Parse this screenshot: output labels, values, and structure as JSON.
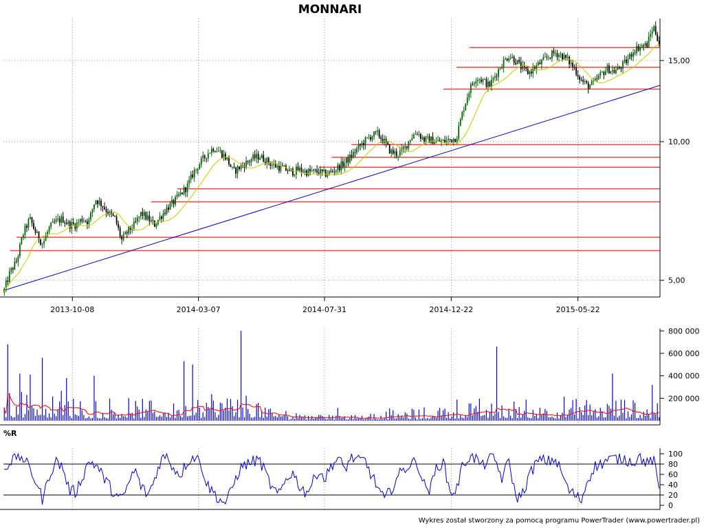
{
  "chart_data": [
    {
      "panel": "price",
      "type": "candlestick",
      "title": "MONNARI",
      "y_scale": "log",
      "ylim": [
        4.6,
        18.5
      ],
      "y_ticks": [
        5,
        10,
        15
      ],
      "y_tick_labels": [
        "5,00",
        "10,00",
        "15,00"
      ],
      "x_tick_labels": [
        "2013-10-08",
        "2014-03-07",
        "2014-07-31",
        "2014-12-22",
        "2015-05-22"
      ],
      "x_range_index": [
        0,
        100
      ],
      "x_tick_positions_index": [
        10.5,
        29.7,
        48.9,
        68.2,
        87.5
      ],
      "grid": true,
      "price_path": [
        [
          0,
          4.7
        ],
        [
          1,
          5.2
        ],
        [
          2,
          5.5
        ],
        [
          3,
          6.3
        ],
        [
          4,
          6.8
        ],
        [
          5,
          6.3
        ],
        [
          6,
          6.0
        ],
        [
          7,
          6.5
        ],
        [
          8,
          6.7
        ],
        [
          9,
          6.8
        ],
        [
          10,
          6.6
        ],
        [
          11,
          6.6
        ],
        [
          12,
          6.8
        ],
        [
          13,
          6.7
        ],
        [
          14,
          7.5
        ],
        [
          15,
          7.3
        ],
        [
          16,
          7.0
        ],
        [
          17,
          6.8
        ],
        [
          18,
          6.1
        ],
        [
          19,
          6.4
        ],
        [
          20,
          6.6
        ],
        [
          21,
          7.0
        ],
        [
          22,
          6.8
        ],
        [
          23,
          6.6
        ],
        [
          24,
          6.9
        ],
        [
          25,
          7.2
        ],
        [
          26,
          7.4
        ],
        [
          27,
          7.7
        ],
        [
          28,
          8.0
        ],
        [
          29,
          8.6
        ],
        [
          30,
          9.0
        ],
        [
          31,
          9.4
        ],
        [
          32,
          9.7
        ],
        [
          33,
          9.5
        ],
        [
          34,
          9.2
        ],
        [
          35,
          8.6
        ],
        [
          36,
          8.8
        ],
        [
          37,
          9.0
        ],
        [
          38,
          9.2
        ],
        [
          39,
          9.3
        ],
        [
          40,
          9.1
        ],
        [
          41,
          8.9
        ],
        [
          42,
          8.8
        ],
        [
          43,
          8.7
        ],
        [
          44,
          8.6
        ],
        [
          45,
          8.7
        ],
        [
          46,
          8.6
        ],
        [
          47,
          8.6
        ],
        [
          48,
          8.6
        ],
        [
          49,
          8.5
        ],
        [
          50,
          8.6
        ],
        [
          51,
          8.8
        ],
        [
          52,
          9.0
        ],
        [
          53,
          9.3
        ],
        [
          54,
          9.7
        ],
        [
          55,
          10.0
        ],
        [
          56,
          10.3
        ],
        [
          57,
          10.4
        ],
        [
          58,
          10.0
        ],
        [
          59,
          9.5
        ],
        [
          60,
          9.4
        ],
        [
          61,
          9.6
        ],
        [
          62,
          10.2
        ],
        [
          63,
          10.5
        ],
        [
          64,
          10.1
        ],
        [
          65,
          10.1
        ],
        [
          66,
          10.0
        ],
        [
          67,
          10.0
        ],
        [
          68,
          10.1
        ],
        [
          69,
          10.2
        ],
        [
          70,
          11.7
        ],
        [
          71,
          13.0
        ],
        [
          72,
          13.8
        ],
        [
          73,
          13.6
        ],
        [
          74,
          13.2
        ],
        [
          75,
          14.0
        ],
        [
          76,
          14.8
        ],
        [
          77,
          15.4
        ],
        [
          78,
          15.0
        ],
        [
          79,
          14.4
        ],
        [
          80,
          14.1
        ],
        [
          81,
          14.5
        ],
        [
          82,
          14.9
        ],
        [
          83,
          15.3
        ],
        [
          84,
          15.6
        ],
        [
          85,
          15.4
        ],
        [
          86,
          15.0
        ],
        [
          87,
          14.4
        ],
        [
          88,
          13.6
        ],
        [
          89,
          13.2
        ],
        [
          90,
          13.4
        ],
        [
          91,
          14.0
        ],
        [
          92,
          14.4
        ],
        [
          93,
          14.2
        ],
        [
          94,
          14.5
        ],
        [
          95,
          15.0
        ],
        [
          96,
          15.8
        ],
        [
          97,
          16.1
        ],
        [
          98,
          16.2
        ],
        [
          99,
          17.8
        ],
        [
          100,
          16.2
        ]
      ],
      "moving_average_color": "#c8c800",
      "support_levels": [
        {
          "x_from": 1,
          "x_to": 100,
          "value": 5.8
        },
        {
          "x_from": 2,
          "x_to": 100,
          "value": 6.2
        },
        {
          "x_from": 22.5,
          "x_to": 100,
          "value": 7.4
        },
        {
          "x_from": 26.5,
          "x_to": 100,
          "value": 7.9
        },
        {
          "x_from": 48,
          "x_to": 100,
          "value": 8.8
        },
        {
          "x_from": 50,
          "x_to": 100,
          "value": 9.25
        },
        {
          "x_from": 53,
          "x_to": 100,
          "value": 9.85
        },
        {
          "x_from": 67,
          "x_to": 100,
          "value": 13.0
        },
        {
          "x_from": 69,
          "x_to": 100,
          "value": 14.5
        },
        {
          "x_from": 71,
          "x_to": 100,
          "value": 16.0
        }
      ],
      "support_color": "#ff4040",
      "trendline": {
        "x1": 0,
        "y1": 4.75,
        "x2": 100,
        "y2": 13.25,
        "color": "#0000cc"
      }
    },
    {
      "panel": "volume",
      "type": "bar",
      "ylim": [
        0,
        820000
      ],
      "y_ticks": [
        200000,
        400000,
        600000,
        800000
      ],
      "y_tick_labels": [
        "200 000",
        "400 000",
        "600 000",
        "800 000"
      ],
      "volume_color": "#0000cc",
      "average_color": "#ff0000",
      "spikes": [
        {
          "x": 0.6,
          "value": 680000
        },
        {
          "x": 2.5,
          "value": 420000
        },
        {
          "x": 4.2,
          "value": 410000
        },
        {
          "x": 6.0,
          "value": 560000
        },
        {
          "x": 9.7,
          "value": 380000
        },
        {
          "x": 13.7,
          "value": 400000
        },
        {
          "x": 27.6,
          "value": 530000
        },
        {
          "x": 28.8,
          "value": 500000
        },
        {
          "x": 36.1,
          "value": 800000
        },
        {
          "x": 75.2,
          "value": 660000
        },
        {
          "x": 92.7,
          "value": 420000
        },
        {
          "x": 98.7,
          "value": 320000
        }
      ]
    },
    {
      "panel": "williams-r",
      "type": "line",
      "title": "%R",
      "ylim": [
        0,
        100
      ],
      "y_ticks": [
        0,
        20,
        40,
        60,
        80,
        100
      ],
      "y_tick_labels": [
        "0",
        "20",
        "40",
        "60",
        "80",
        "100"
      ],
      "reference_levels": [
        20,
        80
      ],
      "line_color": "#0000cc",
      "signal_keypoints": [
        [
          0,
          70
        ],
        [
          1,
          85
        ],
        [
          2,
          95
        ],
        [
          3,
          92
        ],
        [
          4,
          70
        ],
        [
          5,
          45
        ],
        [
          6,
          10
        ],
        [
          7,
          60
        ],
        [
          8,
          85
        ],
        [
          9,
          75
        ],
        [
          10,
          30
        ],
        [
          11,
          25
        ],
        [
          12,
          55
        ],
        [
          13,
          85
        ],
        [
          14,
          80
        ],
        [
          15,
          60
        ],
        [
          16,
          40
        ],
        [
          17,
          20
        ],
        [
          18,
          10
        ],
        [
          19,
          40
        ],
        [
          20,
          70
        ],
        [
          21,
          35
        ],
        [
          22,
          20
        ],
        [
          23,
          50
        ],
        [
          24,
          90
        ],
        [
          25,
          95
        ],
        [
          26,
          70
        ],
        [
          27,
          60
        ],
        [
          28,
          85
        ],
        [
          29,
          95
        ],
        [
          30,
          85
        ],
        [
          31,
          40
        ],
        [
          32,
          25
        ],
        [
          33,
          10
        ],
        [
          34,
          5
        ],
        [
          35,
          40
        ],
        [
          36,
          70
        ],
        [
          37,
          80
        ],
        [
          38,
          85
        ],
        [
          39,
          88
        ],
        [
          40,
          60
        ],
        [
          41,
          30
        ],
        [
          42,
          20
        ],
        [
          43,
          50
        ],
        [
          44,
          65
        ],
        [
          45,
          40
        ],
        [
          46,
          25
        ],
        [
          47,
          40
        ],
        [
          48,
          70
        ],
        [
          49,
          50
        ],
        [
          50,
          80
        ],
        [
          51,
          90
        ],
        [
          52,
          70
        ],
        [
          53,
          95
        ],
        [
          54,
          85
        ],
        [
          55,
          88
        ],
        [
          56,
          60
        ],
        [
          57,
          35
        ],
        [
          58,
          10
        ],
        [
          59,
          30
        ],
        [
          60,
          55
        ],
        [
          61,
          70
        ],
        [
          62,
          80
        ],
        [
          63,
          85
        ],
        [
          64,
          40
        ],
        [
          65,
          30
        ],
        [
          66,
          75
        ],
        [
          67,
          85
        ],
        [
          68,
          25
        ],
        [
          69,
          30
        ],
        [
          70,
          80
        ],
        [
          71,
          95
        ],
        [
          72,
          90
        ],
        [
          73,
          75
        ],
        [
          74,
          95
        ],
        [
          75,
          85
        ],
        [
          76,
          50
        ],
        [
          77,
          90
        ],
        [
          78,
          15
        ],
        [
          79,
          20
        ],
        [
          80,
          55
        ],
        [
          81,
          80
        ],
        [
          82,
          88
        ],
        [
          83,
          85
        ],
        [
          84,
          90
        ],
        [
          85,
          65
        ],
        [
          86,
          30
        ],
        [
          87,
          20
        ],
        [
          88,
          10
        ],
        [
          89,
          50
        ],
        [
          90,
          75
        ],
        [
          91,
          80
        ],
        [
          92,
          88
        ],
        [
          93,
          90
        ],
        [
          94,
          92
        ],
        [
          95,
          88
        ],
        [
          96,
          85
        ],
        [
          97,
          95
        ],
        [
          98,
          80
        ],
        [
          99,
          90
        ],
        [
          100,
          20
        ]
      ]
    }
  ],
  "footer": {
    "credit": "Wykres został stworzony za pomocą programu PowerTrader (www.powertrader.pl)"
  }
}
